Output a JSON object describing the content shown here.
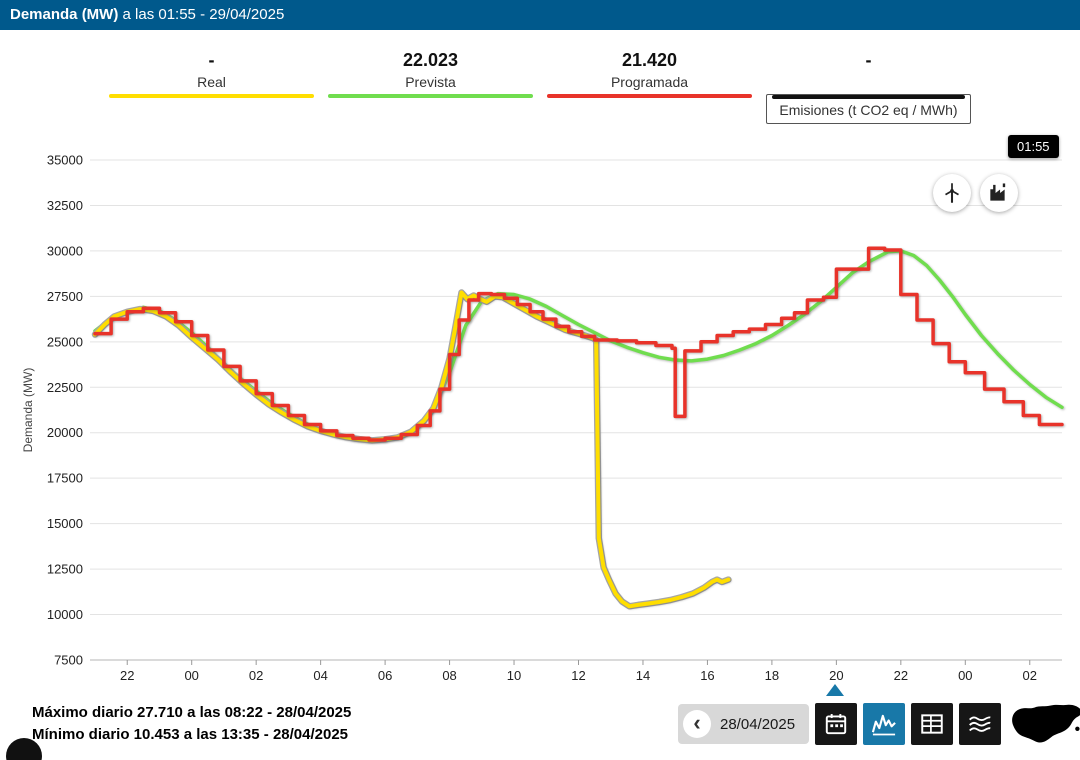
{
  "header": {
    "title_bold": "Demanda (MW)",
    "title_rest": " a las 01:55 - 29/04/2025"
  },
  "legend": {
    "items": [
      {
        "key": "real",
        "value": "-",
        "label": "Real",
        "color": "#FFDE00",
        "boxed": false
      },
      {
        "key": "prevista",
        "value": "22.023",
        "label": "Prevista",
        "color": "#70DD4E",
        "boxed": false
      },
      {
        "key": "programada",
        "value": "21.420",
        "label": "Programada",
        "color": "#E8332A",
        "boxed": false
      },
      {
        "key": "emisiones",
        "value": "-",
        "label": "Emisiones (t CO2 eq / MWh)",
        "color": "#111111",
        "boxed": true
      }
    ]
  },
  "tooltip": {
    "time": "01:55"
  },
  "footer": {
    "max_text": "Máximo diario 27.710 a las 08:22 - 28/04/2025",
    "min_text": "Mínimo diario 10.453 a las 13:35 - 28/04/2025"
  },
  "toolbar": {
    "date": "28/04/2025"
  },
  "icons": {
    "prev": "‹",
    "circle_buttons": [
      "wind-turbine-icon",
      "factory-icon"
    ],
    "view_buttons": [
      "calendar-icon",
      "line-chart-icon",
      "table-icon",
      "stacked-area-icon"
    ],
    "map": "spain-map-icon"
  },
  "chart_data": {
    "type": "line",
    "title": "Demanda (MW) a las 01:55 - 29/04/2025",
    "xlabel": "",
    "ylabel": "Demanda (MW)",
    "x_unit": "hours since 27/04/2025 21:00",
    "xlim": [
      0,
      30
    ],
    "ylim": [
      7500,
      35000
    ],
    "grid": "horizontal",
    "legend_position": "top",
    "y_ticks": [
      7500,
      10000,
      12500,
      15000,
      17500,
      20000,
      22500,
      25000,
      27500,
      30000,
      32500,
      35000
    ],
    "x_ticks": [
      {
        "t": 1,
        "label": "22"
      },
      {
        "t": 3,
        "label": "00"
      },
      {
        "t": 5,
        "label": "02"
      },
      {
        "t": 7,
        "label": "04"
      },
      {
        "t": 9,
        "label": "06"
      },
      {
        "t": 11,
        "label": "08"
      },
      {
        "t": 13,
        "label": "10"
      },
      {
        "t": 15,
        "label": "12"
      },
      {
        "t": 17,
        "label": "14"
      },
      {
        "t": 19,
        "label": "16"
      },
      {
        "t": 21,
        "label": "18"
      },
      {
        "t": 23,
        "label": "20"
      },
      {
        "t": 25,
        "label": "22"
      },
      {
        "t": 27,
        "label": "00"
      },
      {
        "t": 29,
        "label": "02"
      }
    ],
    "series": [
      {
        "key": "prevista",
        "name": "Prevista",
        "color": "#70DD4E",
        "width": 3.5,
        "style": "line",
        "points": [
          [
            0,
            25600
          ],
          [
            0.5,
            26300
          ],
          [
            1,
            26700
          ],
          [
            1.5,
            26900
          ],
          [
            2,
            26700
          ],
          [
            2.5,
            26200
          ],
          [
            3,
            25500
          ],
          [
            3.5,
            24700
          ],
          [
            4,
            23800
          ],
          [
            4.5,
            23000
          ],
          [
            5,
            22300
          ],
          [
            5.5,
            21600
          ],
          [
            6,
            21050
          ],
          [
            6.5,
            20550
          ],
          [
            7,
            20150
          ],
          [
            7.5,
            19850
          ],
          [
            8,
            19650
          ],
          [
            8.5,
            19550
          ],
          [
            9,
            19600
          ],
          [
            9.5,
            19800
          ],
          [
            10,
            20300
          ],
          [
            10.5,
            21300
          ],
          [
            11,
            23300
          ],
          [
            11.5,
            25900
          ],
          [
            12,
            27250
          ],
          [
            12.5,
            27650
          ],
          [
            13,
            27600
          ],
          [
            13.5,
            27350
          ],
          [
            14,
            26950
          ],
          [
            14.5,
            26450
          ],
          [
            15,
            25950
          ],
          [
            15.5,
            25500
          ],
          [
            16,
            25050
          ],
          [
            16.5,
            24700
          ],
          [
            17,
            24400
          ],
          [
            17.5,
            24150
          ],
          [
            18,
            24000
          ],
          [
            18.5,
            23950
          ],
          [
            19,
            24050
          ],
          [
            19.5,
            24250
          ],
          [
            20,
            24550
          ],
          [
            20.5,
            24900
          ],
          [
            21,
            25350
          ],
          [
            21.5,
            25900
          ],
          [
            22,
            26500
          ],
          [
            22.5,
            27200
          ],
          [
            23,
            28000
          ],
          [
            23.5,
            28800
          ],
          [
            24,
            29400
          ],
          [
            24.6,
            29950
          ],
          [
            25,
            30000
          ],
          [
            25.4,
            29750
          ],
          [
            25.8,
            29200
          ],
          [
            26.2,
            28400
          ],
          [
            26.6,
            27500
          ],
          [
            27,
            26500
          ],
          [
            27.5,
            25350
          ],
          [
            28,
            24350
          ],
          [
            28.5,
            23450
          ],
          [
            29,
            22650
          ],
          [
            29.5,
            21950
          ],
          [
            30,
            21400
          ]
        ]
      },
      {
        "key": "real",
        "name": "Real",
        "color": "#FFDE00",
        "width": 4,
        "style": "line",
        "halo": true,
        "points": [
          [
            0,
            25400
          ],
          [
            0.3,
            25950
          ],
          [
            0.6,
            26400
          ],
          [
            1,
            26650
          ],
          [
            1.4,
            26800
          ],
          [
            1.8,
            26700
          ],
          [
            2.2,
            26400
          ],
          [
            2.6,
            25900
          ],
          [
            3,
            25250
          ],
          [
            3.4,
            24650
          ],
          [
            3.8,
            24050
          ],
          [
            4.2,
            23350
          ],
          [
            4.6,
            22700
          ],
          [
            5,
            22100
          ],
          [
            5.4,
            21550
          ],
          [
            5.8,
            21100
          ],
          [
            6.2,
            20700
          ],
          [
            6.6,
            20350
          ],
          [
            7,
            20100
          ],
          [
            7.4,
            19900
          ],
          [
            7.8,
            19750
          ],
          [
            8.2,
            19650
          ],
          [
            8.6,
            19580
          ],
          [
            9,
            19640
          ],
          [
            9.4,
            19750
          ],
          [
            9.8,
            20050
          ],
          [
            10.2,
            20650
          ],
          [
            10.5,
            21350
          ],
          [
            10.75,
            22500
          ],
          [
            11,
            24100
          ],
          [
            11.2,
            26000
          ],
          [
            11.37,
            27710
          ],
          [
            11.55,
            27350
          ],
          [
            11.75,
            27550
          ],
          [
            11.95,
            27350
          ],
          [
            12.15,
            27200
          ],
          [
            12.4,
            27500
          ],
          [
            12.65,
            27450
          ],
          [
            12.85,
            27250
          ],
          [
            13.1,
            27000
          ],
          [
            13.4,
            26700
          ],
          [
            13.7,
            26400
          ],
          [
            14,
            26150
          ],
          [
            14.3,
            25900
          ],
          [
            14.6,
            25650
          ],
          [
            14.9,
            25500
          ],
          [
            15.2,
            25350
          ],
          [
            15.45,
            25200
          ],
          [
            15.55,
            25100
          ],
          [
            15.63,
            14200
          ],
          [
            15.78,
            12600
          ],
          [
            15.95,
            11900
          ],
          [
            16.15,
            11150
          ],
          [
            16.35,
            10720
          ],
          [
            16.58,
            10453
          ],
          [
            16.85,
            10530
          ],
          [
            17.15,
            10600
          ],
          [
            17.5,
            10690
          ],
          [
            17.85,
            10800
          ],
          [
            18.2,
            10960
          ],
          [
            18.55,
            11160
          ],
          [
            18.9,
            11480
          ],
          [
            19.15,
            11800
          ],
          [
            19.3,
            11920
          ],
          [
            19.45,
            11790
          ],
          [
            19.65,
            11920
          ]
        ]
      },
      {
        "key": "programada",
        "name": "Programada",
        "color": "#E8332A",
        "width": 3.5,
        "style": "step",
        "points": [
          [
            0,
            25450
          ],
          [
            0.5,
            26250
          ],
          [
            1,
            26650
          ],
          [
            1.5,
            26850
          ],
          [
            2,
            26600
          ],
          [
            2.5,
            26100
          ],
          [
            3,
            25350
          ],
          [
            3.5,
            24550
          ],
          [
            4,
            23650
          ],
          [
            4.5,
            22850
          ],
          [
            5,
            22150
          ],
          [
            5.5,
            21500
          ],
          [
            6,
            20950
          ],
          [
            6.5,
            20450
          ],
          [
            7,
            20100
          ],
          [
            7.5,
            19850
          ],
          [
            8,
            19700
          ],
          [
            8.5,
            19600
          ],
          [
            9,
            19700
          ],
          [
            9.5,
            19900
          ],
          [
            10,
            20400
          ],
          [
            10.4,
            21200
          ],
          [
            10.7,
            22400
          ],
          [
            11,
            24300
          ],
          [
            11.3,
            26200
          ],
          [
            11.6,
            27300
          ],
          [
            11.9,
            27650
          ],
          [
            12.3,
            27600
          ],
          [
            12.7,
            27400
          ],
          [
            13.1,
            27050
          ],
          [
            13.5,
            26650
          ],
          [
            13.9,
            26250
          ],
          [
            14.3,
            25850
          ],
          [
            14.7,
            25550
          ],
          [
            15.1,
            25300
          ],
          [
            15.5,
            25100
          ],
          [
            16.2,
            25050
          ],
          [
            16.8,
            24950
          ],
          [
            17.4,
            24800
          ],
          [
            17.9,
            24650
          ],
          [
            18.0,
            20900
          ],
          [
            18.3,
            24500
          ],
          [
            18.8,
            25000
          ],
          [
            19.3,
            25350
          ],
          [
            19.8,
            25550
          ],
          [
            20.3,
            25700
          ],
          [
            20.8,
            25950
          ],
          [
            21.3,
            26300
          ],
          [
            21.7,
            26600
          ],
          [
            22.1,
            27300
          ],
          [
            22.6,
            27450
          ],
          [
            23,
            29000
          ],
          [
            24,
            30150
          ],
          [
            24.5,
            30050
          ],
          [
            25,
            27600
          ],
          [
            25.5,
            26200
          ],
          [
            26,
            24900
          ],
          [
            26.5,
            23900
          ],
          [
            27,
            23300
          ],
          [
            27.6,
            22400
          ],
          [
            28.2,
            21700
          ],
          [
            28.8,
            20950
          ],
          [
            29.3,
            20450
          ],
          [
            30,
            20450
          ]
        ]
      }
    ],
    "annotations": {
      "selected_time": "01:55",
      "daily_max": "27.710 a las 08:22 - 28/04/2025",
      "daily_min": "10.453 a las 13:35 - 28/04/2025"
    }
  }
}
